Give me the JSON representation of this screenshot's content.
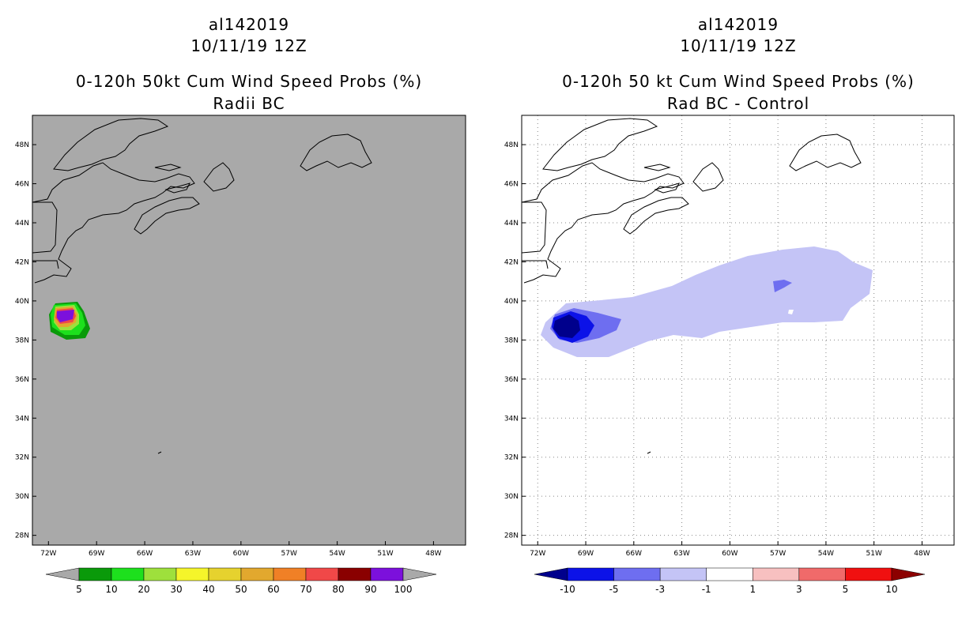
{
  "chart_data": [
    {
      "type": "contour-map",
      "title_lines": [
        "al142019",
        "10/11/19 12Z",
        "0-120h 50kt Cum Wind Speed Probs (%)",
        "Radii BC"
      ],
      "xlabel": "",
      "ylabel": "",
      "lon_range": [
        -73,
        -46
      ],
      "lat_range": [
        27.5,
        49.5
      ],
      "x_ticks": [
        "72W",
        "69W",
        "66W",
        "63W",
        "60W",
        "57W",
        "54W",
        "51W",
        "48W"
      ],
      "x_tick_values": [
        -72,
        -69,
        -66,
        -63,
        -60,
        -57,
        -54,
        -51,
        -48
      ],
      "y_ticks": [
        "28N",
        "30N",
        "32N",
        "34N",
        "36N",
        "38N",
        "40N",
        "42N",
        "44N",
        "46N",
        "48N"
      ],
      "y_tick_values": [
        28,
        30,
        32,
        34,
        36,
        38,
        40,
        42,
        44,
        46,
        48
      ],
      "background": "#a9a9a9",
      "colorbar": {
        "labels": [
          "5",
          "10",
          "20",
          "30",
          "40",
          "50",
          "60",
          "70",
          "80",
          "90",
          "100"
        ],
        "colors": [
          "#a9a9a9",
          "#0a9a0a",
          "#1de01d",
          "#9ee03c",
          "#f5f52a",
          "#e6d22e",
          "#e2a82e",
          "#f08026",
          "#f04848",
          "#8a0000",
          "#7c10dc",
          "#a9a9a9"
        ]
      },
      "probability_area": {
        "center_lon": -70.2,
        "center_lat": 39.1,
        "max_percent": 100
      }
    },
    {
      "type": "contour-map",
      "title_lines": [
        "al142019",
        "10/11/19 12Z",
        "0-120h 50 kt Cum Wind Speed Probs (%)",
        "Rad BC - Control"
      ],
      "xlabel": "",
      "ylabel": "",
      "lon_range": [
        -73,
        -46
      ],
      "lat_range": [
        27.5,
        49.5
      ],
      "x_ticks": [
        "72W",
        "69W",
        "66W",
        "63W",
        "60W",
        "57W",
        "54W",
        "51W",
        "48W"
      ],
      "x_tick_values": [
        -72,
        -69,
        -66,
        -63,
        -60,
        -57,
        -54,
        -51,
        -48
      ],
      "y_ticks": [
        "28N",
        "30N",
        "32N",
        "34N",
        "36N",
        "38N",
        "40N",
        "42N",
        "44N",
        "46N",
        "48N"
      ],
      "y_tick_values": [
        28,
        30,
        32,
        34,
        36,
        38,
        40,
        42,
        44,
        46,
        48
      ],
      "grid": true,
      "background": "#ffffff",
      "colorbar": {
        "labels": [
          "-10",
          "-5",
          "-3",
          "-1",
          "1",
          "3",
          "5",
          "10"
        ],
        "colors": [
          "#00008c",
          "#0c12e8",
          "#6e6ef0",
          "#c4c4f6",
          "#ffffff",
          "#f7c0c0",
          "#f06a6a",
          "#f01010",
          "#8c0000"
        ]
      },
      "difference_area": {
        "min_percent": -10,
        "extent_lon": [
          -72,
          -50
        ],
        "extent_lat": [
          37.8,
          42.8
        ]
      }
    }
  ]
}
